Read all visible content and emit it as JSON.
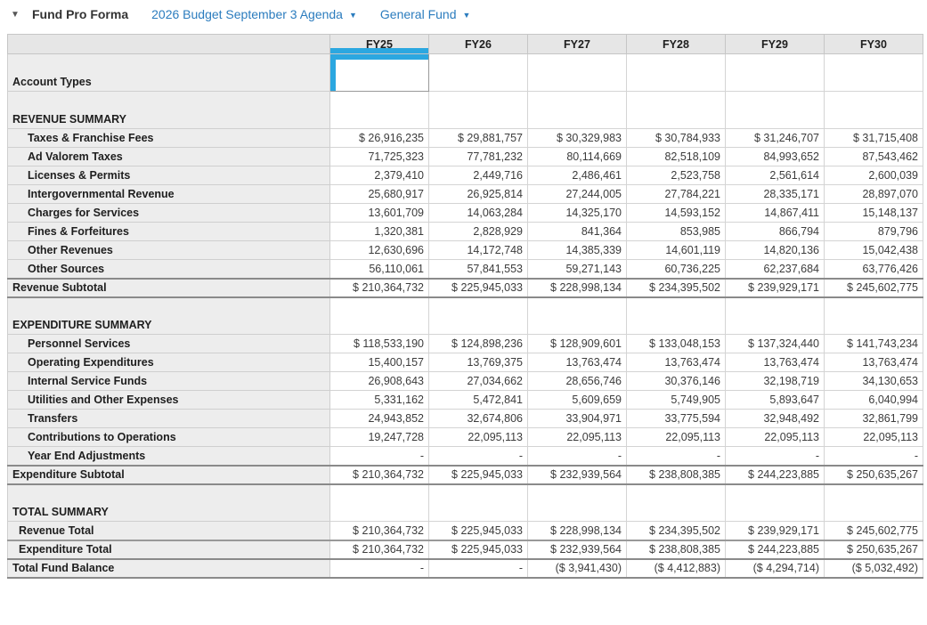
{
  "toolbar": {
    "collapse_icon": "▼",
    "title": "Fund Pro Forma",
    "budget_dropdown_label": "2026 Budget September 3 Agenda",
    "budget_dropdown_caret": "▼",
    "fund_dropdown_label": "General Fund",
    "fund_dropdown_caret": "▼"
  },
  "colors": {
    "accent_selection_blue": "#2ba7e0",
    "dropdown_link_blue": "#2b7cbe",
    "header_gray": "#e6e6e6",
    "label_column_gray": "#ededed",
    "dark_rule_gray": "#8a8a8a"
  },
  "table": {
    "columns": [
      "FY25",
      "FY26",
      "FY27",
      "FY28",
      "FY29",
      "FY30"
    ],
    "selected_column": "FY25",
    "account_types_row": {
      "label": "Account Types"
    },
    "rows": [
      {
        "type": "section",
        "label": "REVENUE SUMMARY",
        "values": [
          "",
          "",
          "",
          "",
          "",
          ""
        ]
      },
      {
        "type": "data",
        "label": "Taxes & Franchise Fees",
        "values": [
          "$ 26,916,235",
          "$ 29,881,757",
          "$ 30,329,983",
          "$ 30,784,933",
          "$ 31,246,707",
          "$ 31,715,408"
        ]
      },
      {
        "type": "data",
        "label": "Ad Valorem Taxes",
        "values": [
          "71,725,323",
          "77,781,232",
          "80,114,669",
          "82,518,109",
          "84,993,652",
          "87,543,462"
        ]
      },
      {
        "type": "data",
        "label": "Licenses & Permits",
        "values": [
          "2,379,410",
          "2,449,716",
          "2,486,461",
          "2,523,758",
          "2,561,614",
          "2,600,039"
        ]
      },
      {
        "type": "data",
        "label": "Intergovernmental Revenue",
        "values": [
          "25,680,917",
          "26,925,814",
          "27,244,005",
          "27,784,221",
          "28,335,171",
          "28,897,070"
        ]
      },
      {
        "type": "data",
        "label": "Charges for Services",
        "values": [
          "13,601,709",
          "14,063,284",
          "14,325,170",
          "14,593,152",
          "14,867,411",
          "15,148,137"
        ]
      },
      {
        "type": "data",
        "label": "Fines & Forfeitures",
        "values": [
          "1,320,381",
          "2,828,929",
          "841,364",
          "853,985",
          "866,794",
          "879,796"
        ]
      },
      {
        "type": "data",
        "label": "Other Revenues",
        "values": [
          "12,630,696",
          "14,172,748",
          "14,385,339",
          "14,601,119",
          "14,820,136",
          "15,042,438"
        ]
      },
      {
        "type": "data",
        "label": "Other Sources",
        "values": [
          "56,110,061",
          "57,841,553",
          "59,271,143",
          "60,736,225",
          "62,237,684",
          "63,776,426"
        ]
      },
      {
        "type": "subtotal",
        "label": "Revenue Subtotal",
        "values": [
          "$ 210,364,732",
          "$ 225,945,033",
          "$ 228,998,134",
          "$ 234,395,502",
          "$ 239,929,171",
          "$ 245,602,775"
        ]
      },
      {
        "type": "section",
        "label": "EXPENDITURE SUMMARY",
        "values": [
          "",
          "",
          "",
          "",
          "",
          ""
        ]
      },
      {
        "type": "data",
        "label": "Personnel Services",
        "values": [
          "$ 118,533,190",
          "$ 124,898,236",
          "$ 128,909,601",
          "$ 133,048,153",
          "$ 137,324,440",
          "$ 141,743,234"
        ]
      },
      {
        "type": "data",
        "label": "Operating Expenditures",
        "values": [
          "15,400,157",
          "13,769,375",
          "13,763,474",
          "13,763,474",
          "13,763,474",
          "13,763,474"
        ]
      },
      {
        "type": "data",
        "label": "Internal Service Funds",
        "values": [
          "26,908,643",
          "27,034,662",
          "28,656,746",
          "30,376,146",
          "32,198,719",
          "34,130,653"
        ]
      },
      {
        "type": "data",
        "label": "Utilities and Other Expenses",
        "values": [
          "5,331,162",
          "5,472,841",
          "5,609,659",
          "5,749,905",
          "5,893,647",
          "6,040,994"
        ]
      },
      {
        "type": "data",
        "label": "Transfers",
        "values": [
          "24,943,852",
          "32,674,806",
          "33,904,971",
          "33,775,594",
          "32,948,492",
          "32,861,799"
        ]
      },
      {
        "type": "data",
        "label": "Contributions to Operations",
        "values": [
          "19,247,728",
          "22,095,113",
          "22,095,113",
          "22,095,113",
          "22,095,113",
          "22,095,113"
        ]
      },
      {
        "type": "data",
        "label": "Year End Adjustments",
        "values": [
          "-",
          "-",
          "-",
          "-",
          "-",
          "-"
        ]
      },
      {
        "type": "subtotal",
        "label": "Expenditure Subtotal",
        "values": [
          "$ 210,364,732",
          "$ 225,945,033",
          "$ 232,939,564",
          "$ 238,808,385",
          "$ 244,223,885",
          "$ 250,635,267"
        ]
      },
      {
        "type": "section",
        "label": "TOTAL SUMMARY",
        "values": [
          "",
          "",
          "",
          "",
          "",
          ""
        ]
      },
      {
        "type": "total",
        "label": "Revenue Total",
        "values": [
          "$ 210,364,732",
          "$ 225,945,033",
          "$ 228,998,134",
          "$ 234,395,502",
          "$ 239,929,171",
          "$ 245,602,775"
        ]
      },
      {
        "type": "total",
        "label": "Expenditure Total",
        "values": [
          "$ 210,364,732",
          "$ 225,945,033",
          "$ 232,939,564",
          "$ 238,808,385",
          "$ 244,223,885",
          "$ 250,635,267"
        ]
      },
      {
        "type": "grandtotal",
        "label": "Total Fund Balance",
        "values": [
          "-",
          "-",
          "($ 3,941,430)",
          "($ 4,412,883)",
          "($ 4,294,714)",
          "($ 5,032,492)"
        ]
      }
    ]
  }
}
